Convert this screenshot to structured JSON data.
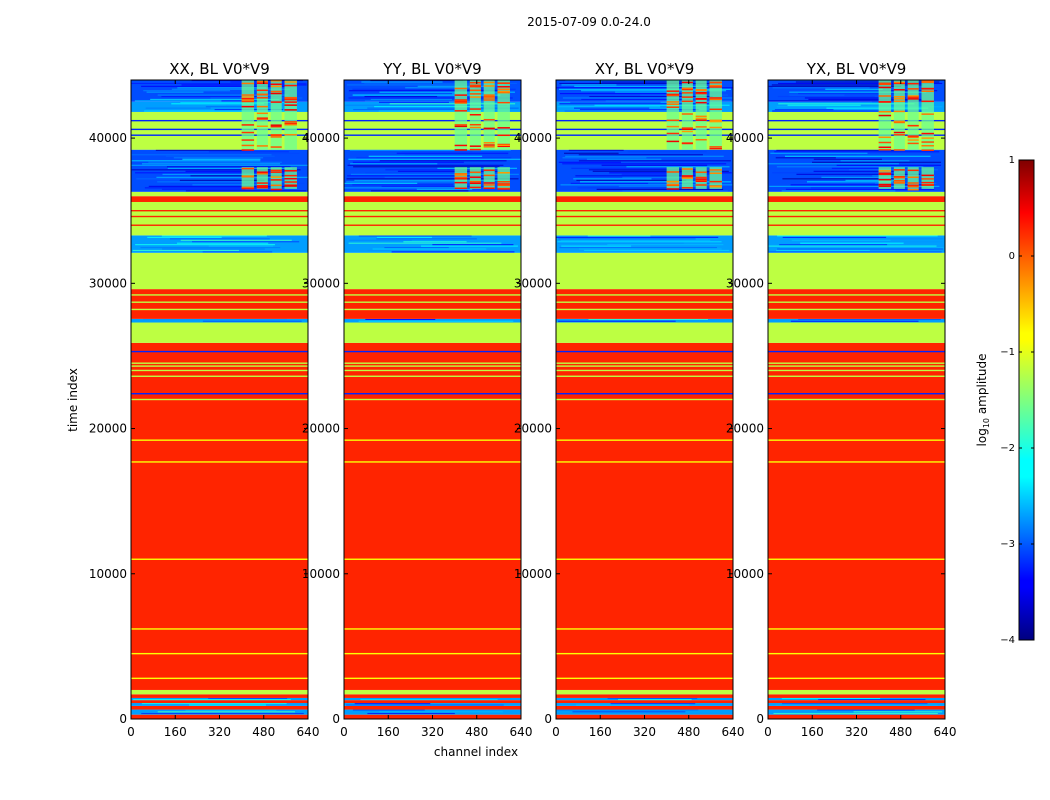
{
  "chart_data": {
    "type": "heatmap",
    "suptitle": "2015-07-09 0.0-24.0",
    "xlabel": "channel index",
    "ylabel": "time index",
    "xlim": [
      0,
      640
    ],
    "ylim": [
      0,
      44000
    ],
    "xticks": [
      0,
      160,
      320,
      480,
      640
    ],
    "yticks": [
      0,
      10000,
      20000,
      30000,
      40000
    ],
    "panels": [
      {
        "title": "XX, BL V0*V9"
      },
      {
        "title": "YY, BL V0*V9"
      },
      {
        "title": "XY, BL V0*V9"
      },
      {
        "title": "YX, BL V0*V9"
      }
    ],
    "colorbar": {
      "label_prefix": "log",
      "label_sub": "10",
      "label_suffix": " amplitude",
      "range": [
        -4,
        1
      ],
      "ticks": [
        1,
        0,
        -1,
        -2,
        -3,
        -4
      ],
      "colormap": "jet"
    },
    "bands": [
      {
        "from": 0,
        "to": 300,
        "level": 0.2
      },
      {
        "from": 300,
        "to": 650,
        "level": -2.6,
        "noisy": true
      },
      {
        "from": 650,
        "to": 900,
        "level": 0.2
      },
      {
        "from": 900,
        "to": 1100,
        "level": -2.6,
        "noisy": true
      },
      {
        "from": 1100,
        "to": 1300,
        "level": 0.2
      },
      {
        "from": 1300,
        "to": 1450,
        "level": -2.6,
        "noisy": true
      },
      {
        "from": 1450,
        "to": 1700,
        "level": 0.2
      },
      {
        "from": 1700,
        "to": 2000,
        "level": -1.2
      },
      {
        "from": 2000,
        "to": 25900,
        "level": 0.2
      },
      {
        "from": 25900,
        "to": 27300,
        "level": -1.2
      },
      {
        "from": 27300,
        "to": 27550,
        "level": -2.6,
        "noisy": true
      },
      {
        "from": 27550,
        "to": 29600,
        "level": 0.2
      },
      {
        "from": 29600,
        "to": 32100,
        "level": -1.2
      },
      {
        "from": 32100,
        "to": 33300,
        "level": -2.6,
        "noisy": true
      },
      {
        "from": 33300,
        "to": 35600,
        "level": -1.2
      },
      {
        "from": 35600,
        "to": 36000,
        "level": 0.2
      },
      {
        "from": 36000,
        "to": 36300,
        "level": -1.2
      },
      {
        "from": 36300,
        "to": 39200,
        "level": -3.0,
        "noisy": true
      },
      {
        "from": 39200,
        "to": 41800,
        "level": -1.2
      },
      {
        "from": 41800,
        "to": 42500,
        "level": -2.6,
        "noisy": true
      },
      {
        "from": 42500,
        "to": 44000,
        "level": -3.0,
        "noisy": true
      }
    ],
    "lines": [
      {
        "y": 2800,
        "level": -0.9
      },
      {
        "y": 4500,
        "level": -0.9
      },
      {
        "y": 6200,
        "level": -0.9
      },
      {
        "y": 11000,
        "level": -0.9
      },
      {
        "y": 17700,
        "level": -0.9
      },
      {
        "y": 19200,
        "level": -0.9
      },
      {
        "y": 22000,
        "level": -1.2
      },
      {
        "y": 22400,
        "level": -3.2
      },
      {
        "y": 23600,
        "level": -1.2
      },
      {
        "y": 24000,
        "level": -1.2
      },
      {
        "y": 24300,
        "level": -1.2
      },
      {
        "y": 24500,
        "level": -1.2
      },
      {
        "y": 25300,
        "level": -3.2
      },
      {
        "y": 28200,
        "level": -1.2
      },
      {
        "y": 28700,
        "level": -1.2
      },
      {
        "y": 29200,
        "level": -1.2
      },
      {
        "y": 34000,
        "level": 0.2
      },
      {
        "y": 34600,
        "level": 0.2
      },
      {
        "y": 35000,
        "level": 0.2
      },
      {
        "y": 40200,
        "level": -3.2
      },
      {
        "y": 40600,
        "level": -3.2
      },
      {
        "y": 41200,
        "level": -3.2
      }
    ],
    "spike_channels": [
      {
        "from": 400,
        "to": 445
      },
      {
        "from": 455,
        "to": 495
      },
      {
        "from": 505,
        "to": 545
      },
      {
        "from": 555,
        "to": 600
      }
    ]
  }
}
